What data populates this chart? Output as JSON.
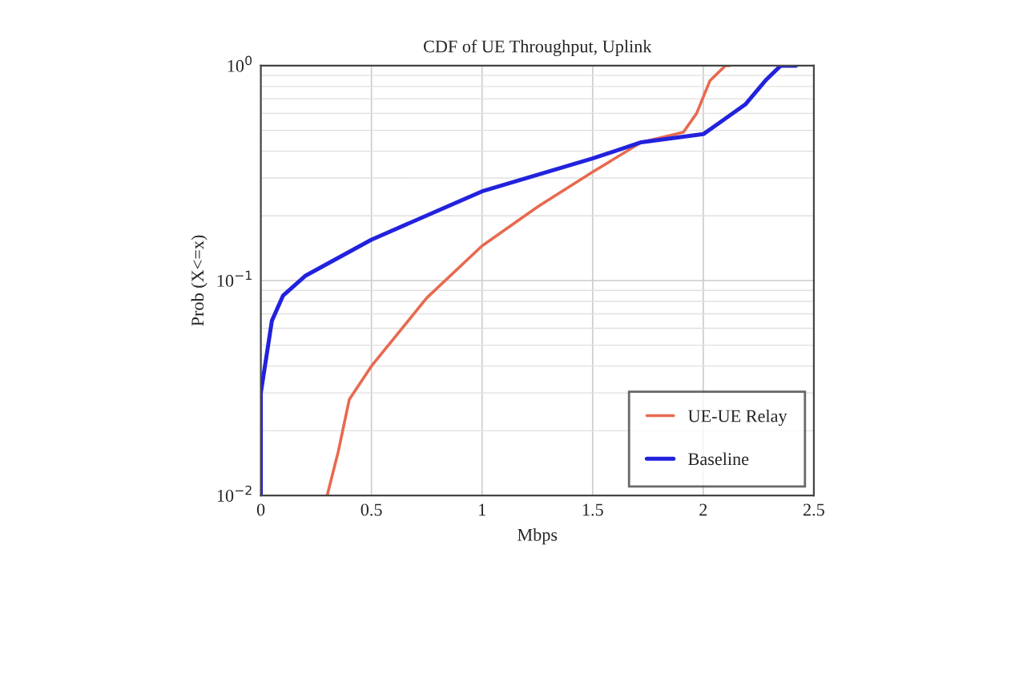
{
  "chart_data": {
    "type": "line",
    "title": "CDF of UE Throughput, Uplink",
    "xlabel": "Mbps",
    "ylabel": "Prob (X<=x)",
    "series": [
      {
        "name": "UE-UE Relay",
        "color": "#e86a50",
        "x": [
          0.3,
          0.35,
          0.4,
          0.5,
          0.75,
          1.0,
          1.25,
          1.5,
          1.72,
          1.91,
          1.97,
          2.03,
          2.1,
          2.12
        ],
        "values": [
          0.01,
          0.016,
          0.028,
          0.04,
          0.083,
          0.145,
          0.22,
          0.32,
          0.44,
          0.49,
          0.6,
          0.85,
          1.0,
          1.0
        ]
      },
      {
        "name": "Baseline",
        "color": "#2222dd",
        "x": [
          0,
          0.0,
          0.05,
          0.1,
          0.2,
          0.5,
          1.0,
          1.5,
          1.72,
          2.0,
          2.06,
          2.19,
          2.28,
          2.35,
          2.42
        ],
        "values": [
          0.01,
          0.03,
          0.065,
          0.085,
          0.105,
          0.155,
          0.26,
          0.37,
          0.44,
          0.48,
          0.53,
          0.66,
          0.85,
          1.0,
          1.0
        ]
      }
    ],
    "log": "y",
    "xlim": [
      0,
      2.5
    ],
    "xticks": [
      0,
      0.5,
      1,
      1.5,
      2,
      2.5
    ],
    "ylim": [
      0.01,
      1
    ],
    "yticks": [
      {
        "value": 0.01,
        "label": "10$^{−2}$"
      },
      {
        "value": 0.1,
        "label": "10$^{−1}$"
      },
      {
        "value": 1,
        "label": "10$^{0}$"
      }
    ],
    "grid": true,
    "legend": "bottom right"
  }
}
